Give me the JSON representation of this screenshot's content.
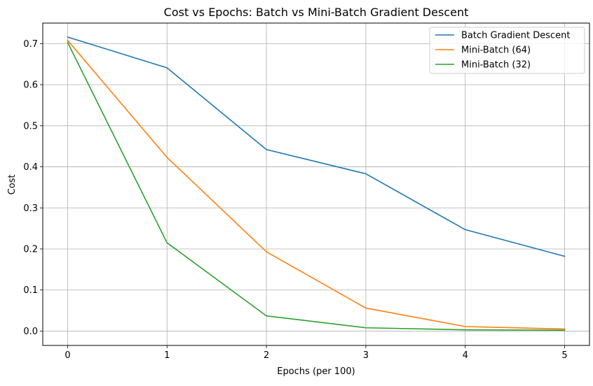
{
  "chart_data": {
    "type": "line",
    "title": "Cost vs Epochs: Batch vs Mini-Batch Gradient Descent",
    "xlabel": "Epochs (per 100)",
    "ylabel": "Cost",
    "x": [
      0,
      1,
      2,
      3,
      4,
      5
    ],
    "xlim": [
      -0.25,
      5.25
    ],
    "ylim": [
      -0.035,
      0.75
    ],
    "xticks": [
      0,
      1,
      2,
      3,
      4,
      5
    ],
    "yticks": [
      0.0,
      0.1,
      0.2,
      0.3,
      0.4,
      0.5,
      0.6,
      0.7
    ],
    "ytick_labels": [
      "0.0",
      "0.1",
      "0.2",
      "0.3",
      "0.4",
      "0.5",
      "0.6",
      "0.7"
    ],
    "grid": true,
    "legend_position": "top-right",
    "series": [
      {
        "name": "Batch Gradient Descent",
        "color": "#1f77b4",
        "values": [
          0.716,
          0.641,
          0.442,
          0.383,
          0.247,
          0.182
        ]
      },
      {
        "name": "Mini-Batch (64)",
        "color": "#ff7f0e",
        "values": [
          0.708,
          0.423,
          0.193,
          0.056,
          0.011,
          0.005
        ]
      },
      {
        "name": "Mini-Batch (32)",
        "color": "#2ca02c",
        "values": [
          0.703,
          0.215,
          0.037,
          0.008,
          0.003,
          0.002
        ]
      }
    ]
  }
}
